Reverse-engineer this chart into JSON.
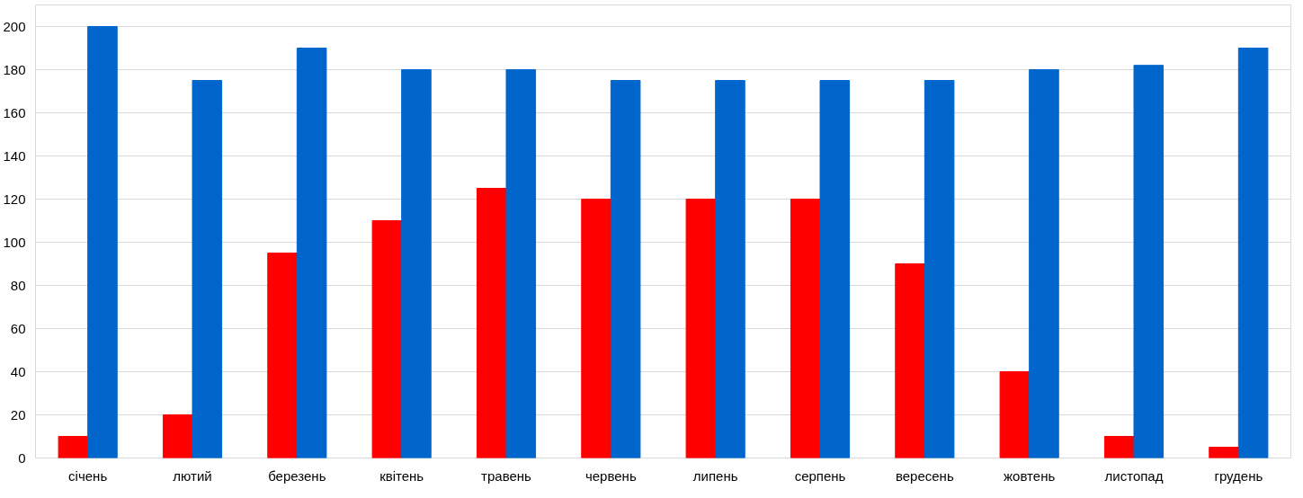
{
  "chart_data": {
    "type": "bar",
    "categories": [
      "січень",
      "лютий",
      "березень",
      "квітень",
      "травень",
      "червень",
      "липень",
      "серпень",
      "вересень",
      "жовтень",
      "листопад",
      "грудень"
    ],
    "series": [
      {
        "color": "#ff0000",
        "values": [
          10,
          20,
          95,
          110,
          125,
          120,
          120,
          120,
          90,
          40,
          10,
          5
        ]
      },
      {
        "color": "#0066cc",
        "values": [
          200,
          175,
          190,
          180,
          180,
          175,
          175,
          175,
          175,
          180,
          182,
          190
        ]
      }
    ],
    "ylim": [
      0,
      210
    ],
    "yticks": [
      0,
      20,
      40,
      60,
      80,
      100,
      120,
      140,
      160,
      180,
      200
    ],
    "grid": "y"
  }
}
